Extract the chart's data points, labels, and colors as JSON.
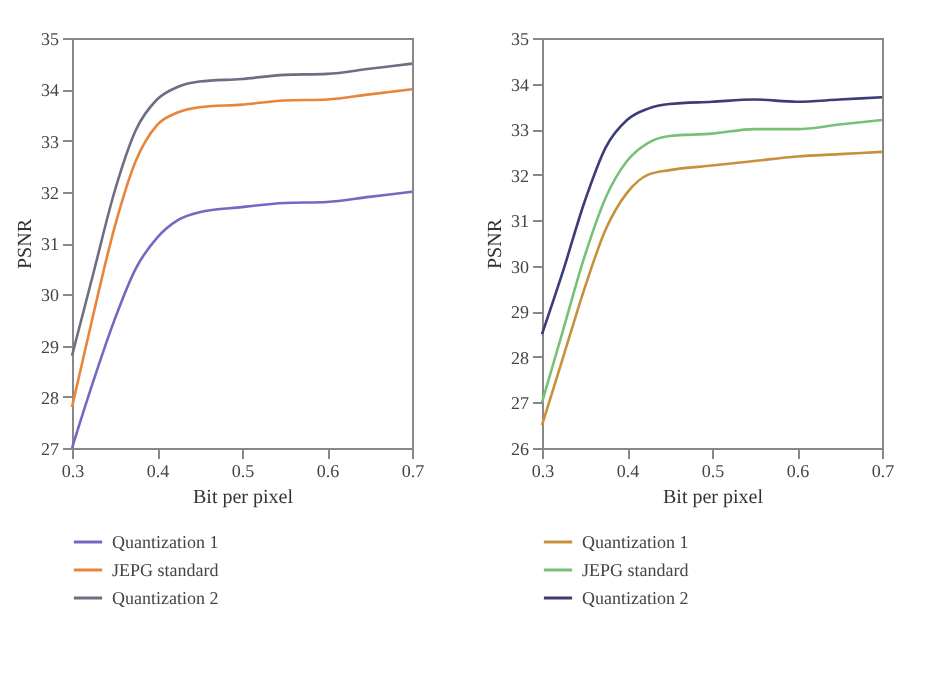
{
  "chart_data": [
    {
      "type": "line",
      "xlabel": "Bit per pixel",
      "ylabel": "PSNR",
      "x": [
        0.3,
        0.325,
        0.35,
        0.375,
        0.4,
        0.425,
        0.45,
        0.5,
        0.55,
        0.6,
        0.65,
        0.7
      ],
      "xlim": [
        0.3,
        0.7
      ],
      "xticks": [
        0.3,
        0.4,
        0.5,
        0.6,
        0.7
      ],
      "ylim": [
        27,
        35
      ],
      "yticks": [
        27,
        28,
        29,
        30,
        31,
        32,
        33,
        34,
        35
      ],
      "grid": false,
      "legend": "bottom",
      "line_style": "solid",
      "series": [
        {
          "name": "Quantization 1",
          "color": "#7468c0",
          "values": [
            27.0,
            28.3,
            29.5,
            30.5,
            31.1,
            31.45,
            31.6,
            31.7,
            31.78,
            31.8,
            31.9,
            32.0
          ]
        },
        {
          "name": "JEPG standard",
          "color": "#e8853a",
          "values": [
            27.8,
            29.6,
            31.3,
            32.6,
            33.3,
            33.55,
            33.65,
            33.7,
            33.78,
            33.8,
            33.9,
            34.0
          ]
        },
        {
          "name": "Quantization 2",
          "color": "#6e6e82",
          "values": [
            28.8,
            30.4,
            32.0,
            33.2,
            33.8,
            34.05,
            34.15,
            34.2,
            34.28,
            34.3,
            34.4,
            34.5
          ]
        }
      ]
    },
    {
      "type": "line",
      "xlabel": "Bit per pixel",
      "ylabel": "PSNR",
      "x": [
        0.3,
        0.325,
        0.35,
        0.375,
        0.4,
        0.425,
        0.45,
        0.5,
        0.55,
        0.6,
        0.65,
        0.7
      ],
      "xlim": [
        0.3,
        0.7
      ],
      "xticks": [
        0.3,
        0.4,
        0.5,
        0.6,
        0.7
      ],
      "ylim": [
        26,
        35
      ],
      "yticks": [
        26,
        27,
        28,
        29,
        30,
        31,
        32,
        33,
        34,
        35
      ],
      "grid": false,
      "legend": "bottom",
      "line_style": "solid",
      "series": [
        {
          "name": "Quantization 1",
          "color": "#c8903c",
          "values": [
            26.5,
            28.0,
            29.5,
            30.8,
            31.6,
            32.0,
            32.1,
            32.2,
            32.3,
            32.4,
            32.45,
            32.5
          ]
        },
        {
          "name": "JEPG standard",
          "color": "#78c078",
          "values": [
            27.0,
            28.6,
            30.2,
            31.5,
            32.3,
            32.7,
            32.85,
            32.9,
            33.0,
            33.0,
            33.1,
            33.2
          ]
        },
        {
          "name": "Quantization 2",
          "color": "#3c3c78",
          "values": [
            28.5,
            29.9,
            31.4,
            32.6,
            33.2,
            33.45,
            33.55,
            33.6,
            33.65,
            33.6,
            33.65,
            33.7
          ]
        }
      ]
    }
  ]
}
